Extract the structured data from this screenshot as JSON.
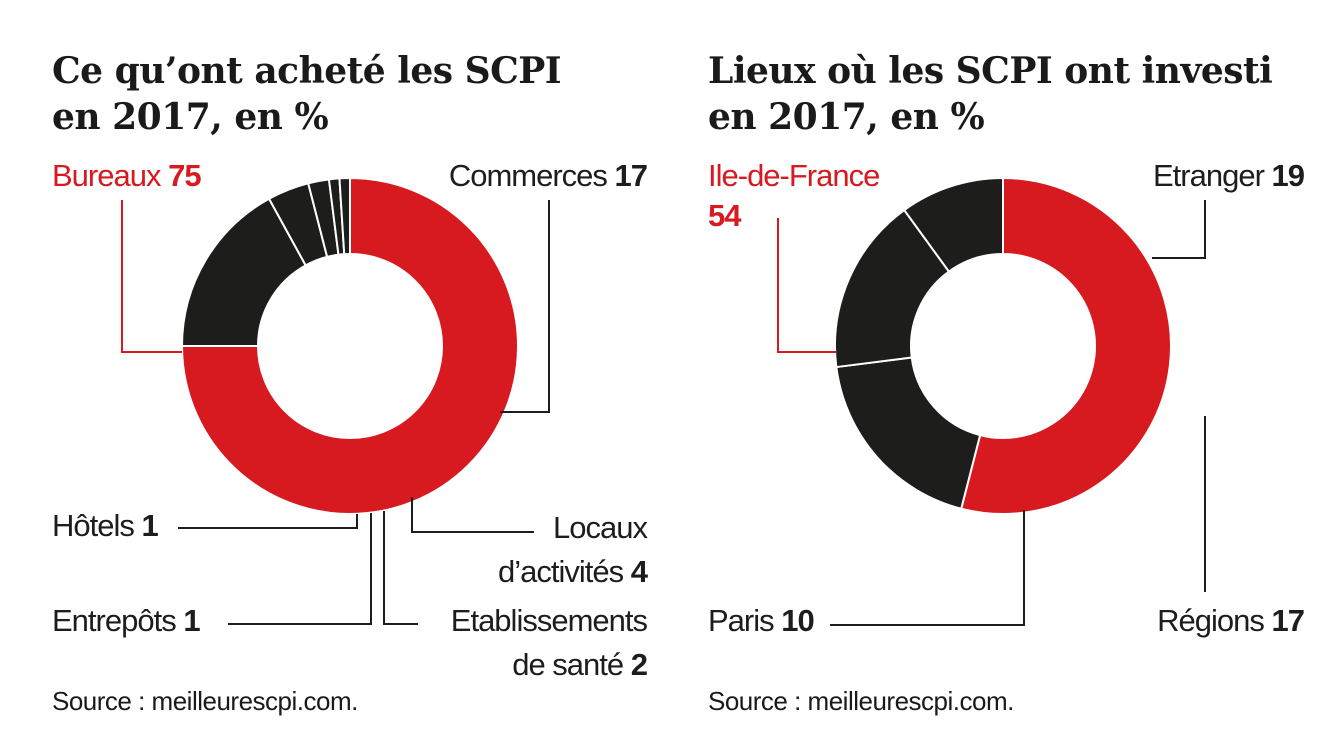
{
  "colors": {
    "highlight": "#d71920",
    "dark": "#1d1d1b",
    "line": "#1d1d1b"
  },
  "chart_data": [
    {
      "type": "pie",
      "title_line1": "Ce qu’ont acheté les SCPI",
      "title_line2": "en 2017, en %",
      "source": "Source : meilleurescpi.com.",
      "slices": [
        {
          "label": "Bureaux",
          "value": 75,
          "label_lines": [
            "Bureaux"
          ]
        },
        {
          "label": "Commerces",
          "value": 17,
          "label_lines": [
            "Commerces"
          ]
        },
        {
          "label": "Locaux d’activités",
          "value": 4,
          "label_lines": [
            "Locaux",
            "d’activités"
          ]
        },
        {
          "label": "Etablissements de santé",
          "value": 2,
          "label_lines": [
            "Etablissements",
            "de santé"
          ]
        },
        {
          "label": "Entrepôts",
          "value": 1,
          "label_lines": [
            "Entrepôts"
          ]
        },
        {
          "label": "Hôtels",
          "value": 1,
          "label_lines": [
            "Hôtels"
          ]
        }
      ]
    },
    {
      "type": "pie",
      "title_line1": "Lieux où les SCPI ont investi",
      "title_line2": "en 2017, en %",
      "source": "Source : meilleurescpi.com.",
      "slices": [
        {
          "label": "Ile-de-France",
          "value": 54,
          "label_lines": [
            "Ile-de-France"
          ]
        },
        {
          "label": "Etranger",
          "value": 19,
          "label_lines": [
            "Etranger"
          ]
        },
        {
          "label": "Régions",
          "value": 17,
          "label_lines": [
            "Régions"
          ]
        },
        {
          "label": "Paris",
          "value": 10,
          "label_lines": [
            "Paris"
          ]
        }
      ]
    }
  ]
}
